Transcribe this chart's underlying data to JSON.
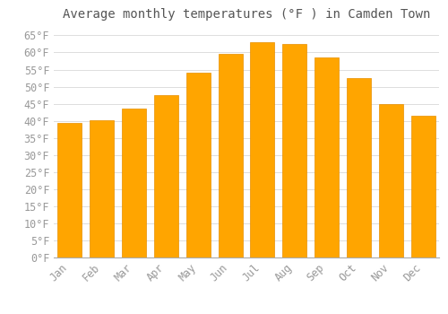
{
  "title": "Average monthly temperatures (°F ) in Camden Town",
  "months": [
    "Jan",
    "Feb",
    "Mar",
    "Apr",
    "May",
    "Jun",
    "Jul",
    "Aug",
    "Sep",
    "Oct",
    "Nov",
    "Dec"
  ],
  "values": [
    39.5,
    40.3,
    43.7,
    47.5,
    54.0,
    59.5,
    63.0,
    62.5,
    58.5,
    52.5,
    45.0,
    41.5
  ],
  "bar_color": "#FFA500",
  "bar_edge_color": "#E89000",
  "ylim": [
    0,
    68
  ],
  "yticks": [
    0,
    5,
    10,
    15,
    20,
    25,
    30,
    35,
    40,
    45,
    50,
    55,
    60,
    65
  ],
  "background_color": "#FFFFFF",
  "grid_color": "#DDDDDD",
  "title_fontsize": 10,
  "tick_fontsize": 8.5,
  "font_family": "monospace",
  "tick_color": "#999999",
  "title_color": "#555555"
}
